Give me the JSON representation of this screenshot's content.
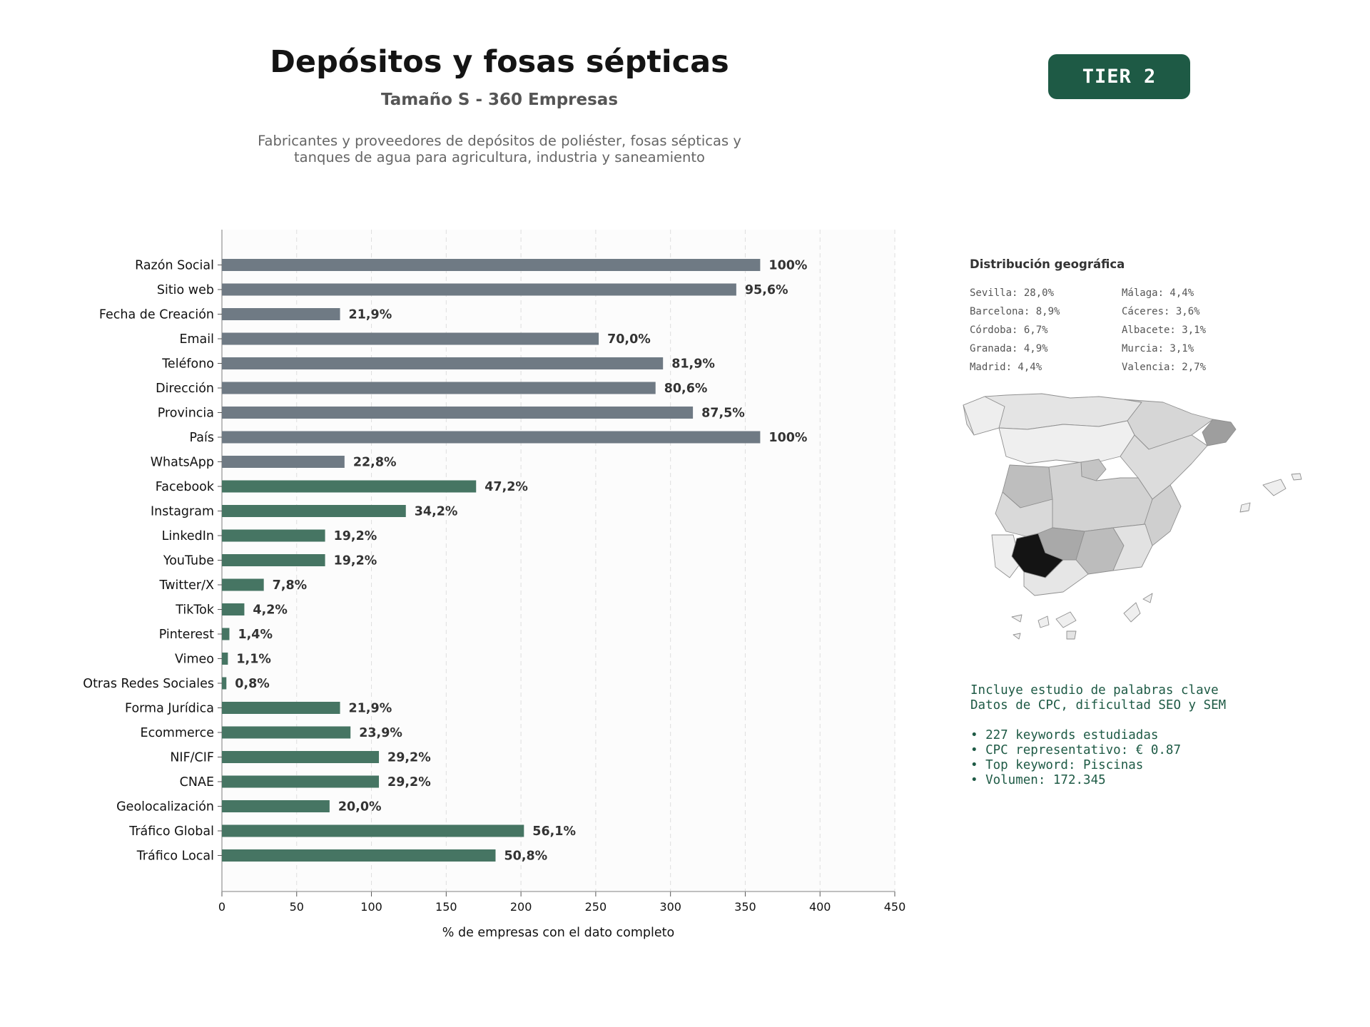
{
  "header": {
    "title": "Depósitos y fosas sépticas",
    "subtitle": "Tamaño S - 360 Empresas",
    "description_lines": [
      "Fabricantes y proveedores de depósitos de poliéster, fosas sépticas y",
      "tanques de agua para agricultura, industria y saneamiento"
    ],
    "tier_badge": "TIER 2"
  },
  "colors": {
    "bar_gray": "#6f7a84",
    "bar_green": "#467563",
    "accent": "#1e5a45",
    "label_text": "#333333"
  },
  "chart_data": {
    "type": "bar",
    "orientation": "horizontal",
    "xlabel": "% de empresas con el dato completo",
    "xlim": [
      0,
      450
    ],
    "xticks": [
      0,
      50,
      100,
      150,
      200,
      250,
      300,
      350,
      400,
      450
    ],
    "grid": "vertical dashed",
    "categories": [
      "Razón Social",
      "Sitio web",
      "Fecha de Creación",
      "Email",
      "Teléfono",
      "Dirección",
      "Provincia",
      "País",
      "WhatsApp",
      "Facebook",
      "Instagram",
      "LinkedIn",
      "YouTube",
      "Twitter/X",
      "TikTok",
      "Pinterest",
      "Vimeo",
      "Otras Redes Sociales",
      "Forma Jurídica",
      "Ecommerce",
      "NIF/CIF",
      "CNAE",
      "Geolocalización",
      "Tráfico Global",
      "Tráfico Local"
    ],
    "values": [
      360,
      344,
      79,
      252,
      295,
      290,
      315,
      360,
      82,
      170,
      123,
      69,
      69,
      28,
      15,
      5,
      4,
      3,
      79,
      86,
      105,
      105,
      72,
      202,
      183
    ],
    "value_labels": [
      "100%",
      "95,6%",
      "21,9%",
      "70,0%",
      "81,9%",
      "80,6%",
      "87,5%",
      "100%",
      "22,8%",
      "47,2%",
      "34,2%",
      "19,2%",
      "19,2%",
      "7,8%",
      "4,2%",
      "1,4%",
      "1,1%",
      "0,8%",
      "21,9%",
      "23,9%",
      "29,2%",
      "29,2%",
      "20,0%",
      "56,1%",
      "50,8%"
    ],
    "groups": [
      "basic",
      "basic",
      "basic",
      "basic",
      "basic",
      "basic",
      "basic",
      "basic",
      "basic",
      "extra",
      "extra",
      "extra",
      "extra",
      "extra",
      "extra",
      "extra",
      "extra",
      "extra",
      "extra",
      "extra",
      "extra",
      "extra",
      "extra",
      "extra",
      "extra"
    ]
  },
  "geo": {
    "title": "Distribución geográfica",
    "items": [
      "Sevilla: 28,0%",
      "Málaga: 4,4%",
      "Barcelona: 8,9%",
      "Cáceres: 3,6%",
      "Córdoba: 6,7%",
      "Albacete: 3,1%",
      "Granada: 4,9%",
      "Murcia: 3,1%",
      "Madrid: 4,4%",
      "Valencia: 2,7%"
    ]
  },
  "keywords": {
    "lines": [
      "Incluye estudio de palabras clave",
      "Datos de CPC, dificultad SEO y SEM"
    ],
    "bullets": [
      "• 227 keywords estudiadas",
      "• CPC representativo: € 0.87",
      "• Top keyword: Piscinas",
      "• Volumen: 172.345"
    ]
  }
}
